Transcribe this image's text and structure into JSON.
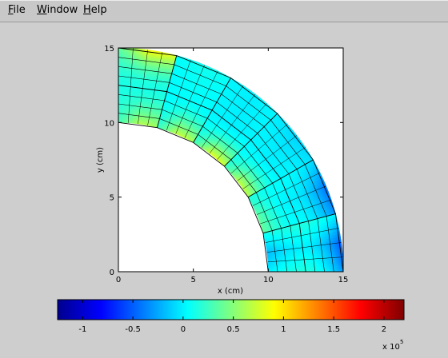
{
  "window": {
    "menu": [
      {
        "mnemonic": "F",
        "rest": "ile"
      },
      {
        "mnemonic": "W",
        "rest": "indow"
      },
      {
        "mnemonic": "H",
        "rest": "elp"
      }
    ]
  },
  "plot": {
    "xlabel": "x (cm)",
    "ylabel": "y (cm)",
    "xlim": [
      0,
      15
    ],
    "ylim": [
      0,
      15
    ],
    "xticks": [
      "0",
      "5",
      "10",
      "15"
    ],
    "yticks": [
      "0",
      "5",
      "10",
      "15"
    ],
    "mesh": {
      "inner_radius_cm": 10,
      "outer_radius_cm": 15,
      "angular_elements": 6,
      "radial_layers": 2,
      "sub_rows_per_layer": 4
    }
  },
  "colorbar": {
    "colormap": "jet",
    "range": [
      -1.25,
      2.2
    ],
    "ticks": [
      "-1",
      "-0.5",
      "0",
      "0.5",
      "1",
      "1.5",
      "2"
    ],
    "tick_values": [
      -1,
      -0.5,
      0,
      0.5,
      1,
      1.5,
      2
    ],
    "exponent_base": "x 10",
    "exponent_power": "5"
  }
}
